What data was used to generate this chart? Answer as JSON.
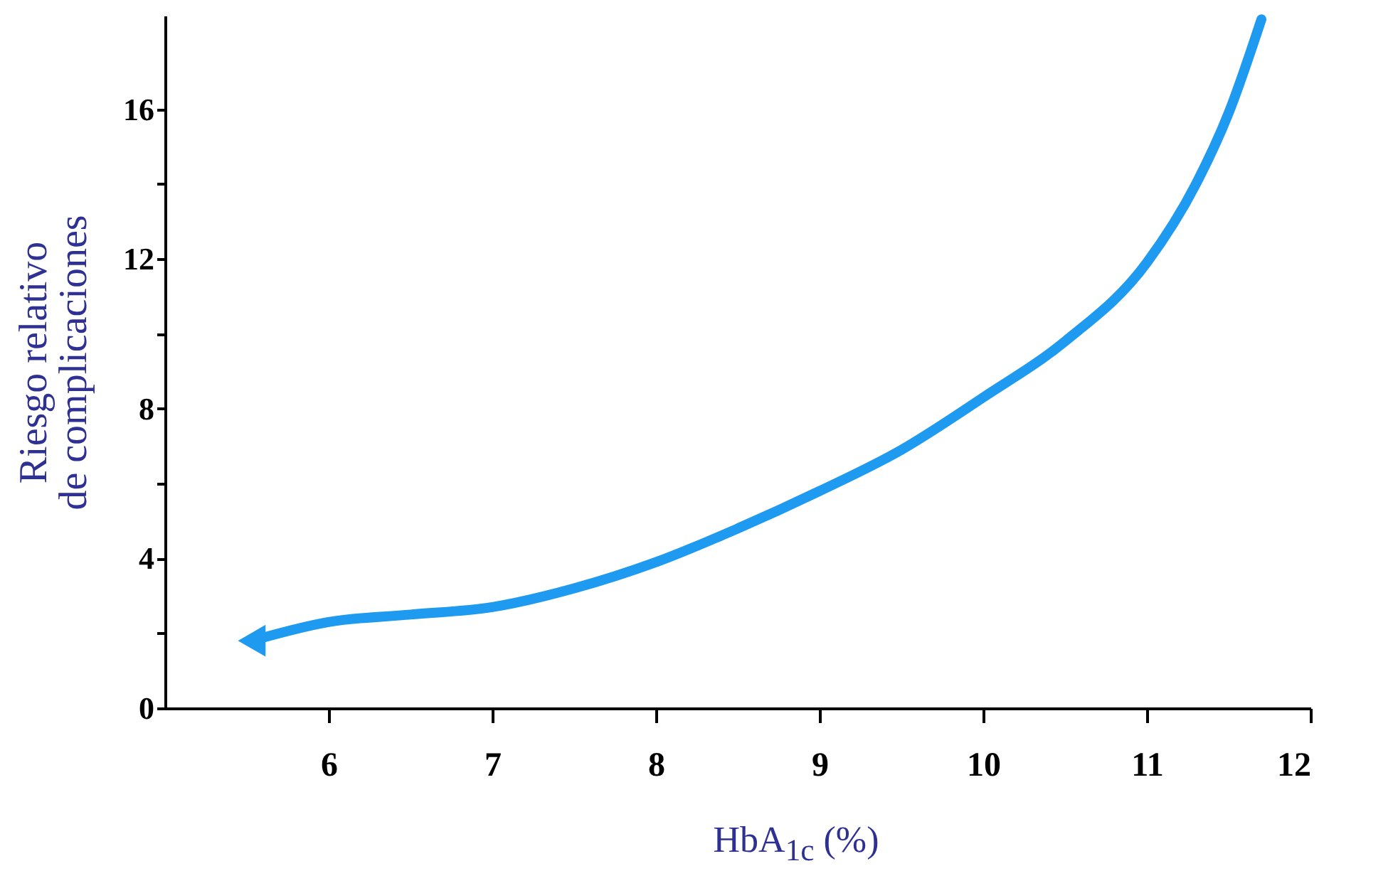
{
  "chart_data": {
    "type": "line",
    "xlabel": "HbA$_{1c}$ (%)",
    "ylabel": "Riesgo relativo\nde complicaciones",
    "x": [
      5.53,
      6,
      6.5,
      7,
      7.5,
      8,
      8.5,
      9,
      9.5,
      10,
      10.5,
      11,
      11.3,
      11.5,
      11.7
    ],
    "series": [
      {
        "color": "#1e9bf0",
        "values": [
          1.8,
          2.3,
          2.5,
          2.7,
          3.2,
          3.9,
          4.8,
          5.8,
          6.9,
          8.3,
          9.8,
          11.9,
          14,
          15.9,
          18.4
        ]
      }
    ],
    "xlim": [
      5,
      12
    ],
    "xticks": [
      6,
      7,
      8,
      9,
      10,
      11,
      12
    ],
    "ylim": [
      0,
      18.5
    ],
    "yticks": [
      0,
      {
        "value": 2,
        "label": null
      },
      4,
      {
        "value": 6,
        "label": null
      },
      8,
      {
        "value": 10,
        "label": null
      },
      12,
      {
        "value": 14,
        "label": null
      },
      16
    ],
    "grid": false,
    "marker": "none",
    "line_style": "solid"
  }
}
